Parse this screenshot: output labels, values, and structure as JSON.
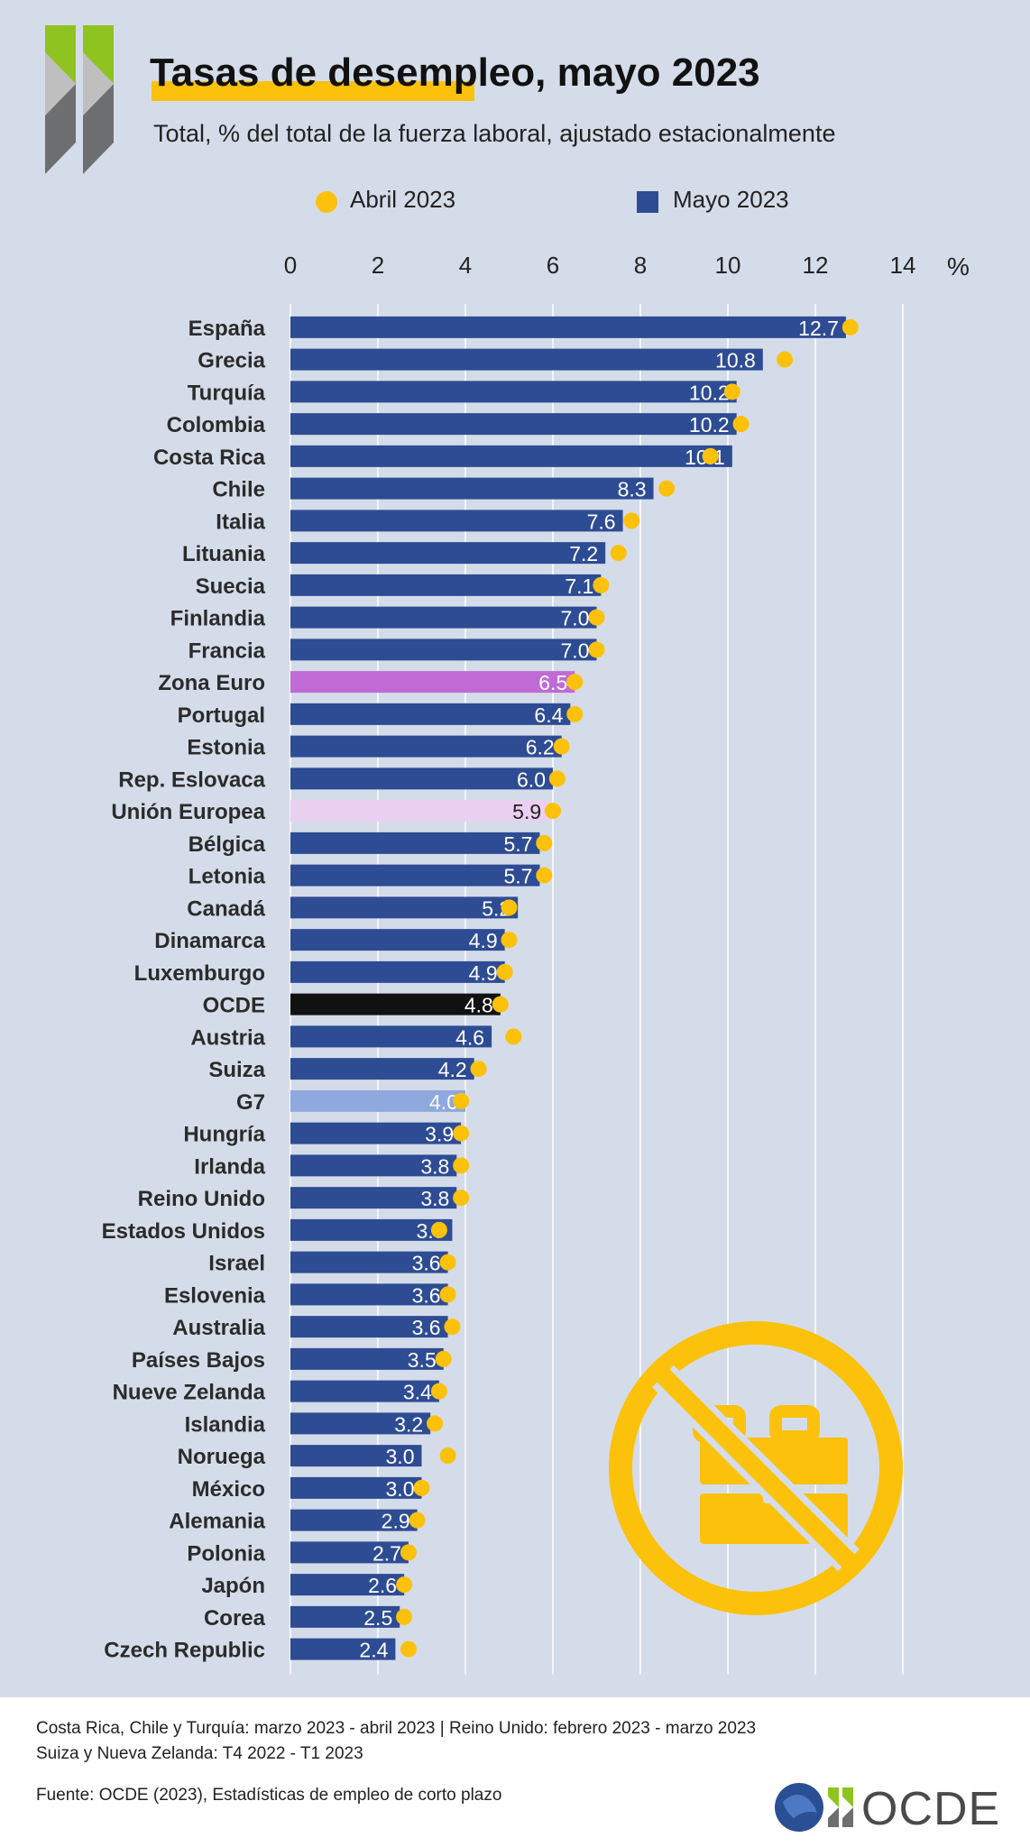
{
  "title": "Tasas de desempleo, mayo 2023",
  "subtitle": "Total, % del total de la fuerza laboral, ajustado estacionalmente",
  "legend": {
    "april": "Abril 2023",
    "may": "Mayo 2023",
    "placement": "top"
  },
  "axis_unit": "%",
  "colors": {
    "bar": "#2e4c93",
    "zona_euro": "#c06ad6",
    "union_europea": "#ead0f0",
    "ocde": "#111111",
    "g7": "#8fa8de",
    "dot": "#fcc10a",
    "background": "#d5dce9",
    "accent_arrow_green": "#8fc31f",
    "accent_arrow_grey": "#6d6e70",
    "title_underline": "#fcc10a"
  },
  "icons": {
    "brand": "oecd-double-chevron-icon",
    "illustration": "no-briefcase-icon",
    "footer_globe": "globe-icon"
  },
  "footer": {
    "note1": "Costa Rica, Chile y Turquía: marzo 2023 - abril 2023 | Reino Unido: febrero 2023 - marzo 2023",
    "note2": "Suiza y Nueva Zelanda: T4 2022 - T1 2023",
    "source": "Fuente: OCDE (2023), Estadísticas de empleo de corto plazo",
    "logo_text": "OCDE"
  },
  "chart_data": {
    "type": "bar",
    "orientation": "horizontal",
    "title": "Tasas de desempleo, mayo 2023",
    "subtitle": "Total, % del total de la fuerza laboral, ajustado estacionalmente",
    "xlim": [
      0,
      14
    ],
    "xticks": [
      0,
      2,
      4,
      6,
      8,
      10,
      12,
      14
    ],
    "grid": true,
    "legend_placement": "top",
    "categories": [
      "España",
      "Grecia",
      "Turquía",
      "Colombia",
      "Costa Rica",
      "Chile",
      "Italia",
      "Lituania",
      "Suecia",
      "Finlandia",
      "Francia",
      "Zona Euro",
      "Portugal",
      "Estonia",
      "Rep. Eslovaca",
      "Unión Europea",
      "Bélgica",
      "Letonia",
      "Canadá",
      "Dinamarca",
      "Luxemburgo",
      "OCDE",
      "Austria",
      "Suiza",
      "G7",
      "Hungría",
      "Irlanda",
      "Reino Unido",
      "Estados Unidos",
      "Israel",
      "Eslovenia",
      "Australia",
      "Países Bajos",
      "Nueve Zelanda",
      "Islandia",
      "Noruega",
      "México",
      "Alemania",
      "Polonia",
      "Japón",
      "Corea",
      "Czech Republic"
    ],
    "series": [
      {
        "name": "Mayo 2023",
        "mark": "bar",
        "values": [
          12.7,
          10.8,
          10.2,
          10.2,
          10.1,
          8.3,
          7.6,
          7.2,
          7.1,
          7.0,
          7.0,
          6.5,
          6.4,
          6.2,
          6.0,
          5.9,
          5.7,
          5.7,
          5.2,
          4.9,
          4.9,
          4.8,
          4.6,
          4.2,
          4.0,
          3.9,
          3.8,
          3.8,
          3.7,
          3.6,
          3.6,
          3.6,
          3.5,
          3.4,
          3.2,
          3.0,
          3.0,
          2.9,
          2.7,
          2.6,
          2.5,
          2.4
        ],
        "labels": [
          "12.7",
          "10.8",
          "10.2",
          "10.2",
          "10.1",
          "8.3",
          "7.6",
          "7.2",
          "7.1",
          "7.0",
          "7.0",
          "6.5",
          "6.4",
          "6.2",
          "6.0",
          "5.9",
          "5.7",
          "5.7",
          "5.2",
          "4.9",
          "4.9",
          "4.8",
          "4.6",
          "4.2",
          "4.0",
          "3.9",
          "3.8",
          "3.8",
          "3.7",
          "3.6",
          "3.6",
          "3.6",
          "3.5",
          "3.4",
          "3.2",
          "3.0",
          "3.0",
          "2.9",
          "2.7",
          "2.6",
          "2.5",
          "2.4"
        ]
      },
      {
        "name": "Abril 2023",
        "mark": "dot",
        "values": [
          12.8,
          11.3,
          10.1,
          10.3,
          9.6,
          8.6,
          7.8,
          7.5,
          7.1,
          7.0,
          7.0,
          6.5,
          6.5,
          6.2,
          6.1,
          6.0,
          5.8,
          5.8,
          5.0,
          5.0,
          4.9,
          4.8,
          5.1,
          4.3,
          3.9,
          3.9,
          3.9,
          3.9,
          3.4,
          3.6,
          3.6,
          3.7,
          3.5,
          3.4,
          3.3,
          3.6,
          3.0,
          2.9,
          2.7,
          2.6,
          2.6,
          2.7
        ]
      }
    ],
    "highlights": {
      "Zona Euro": "zona_euro",
      "Unión Europea": "union_europea",
      "OCDE": "ocde",
      "G7": "g7"
    }
  }
}
